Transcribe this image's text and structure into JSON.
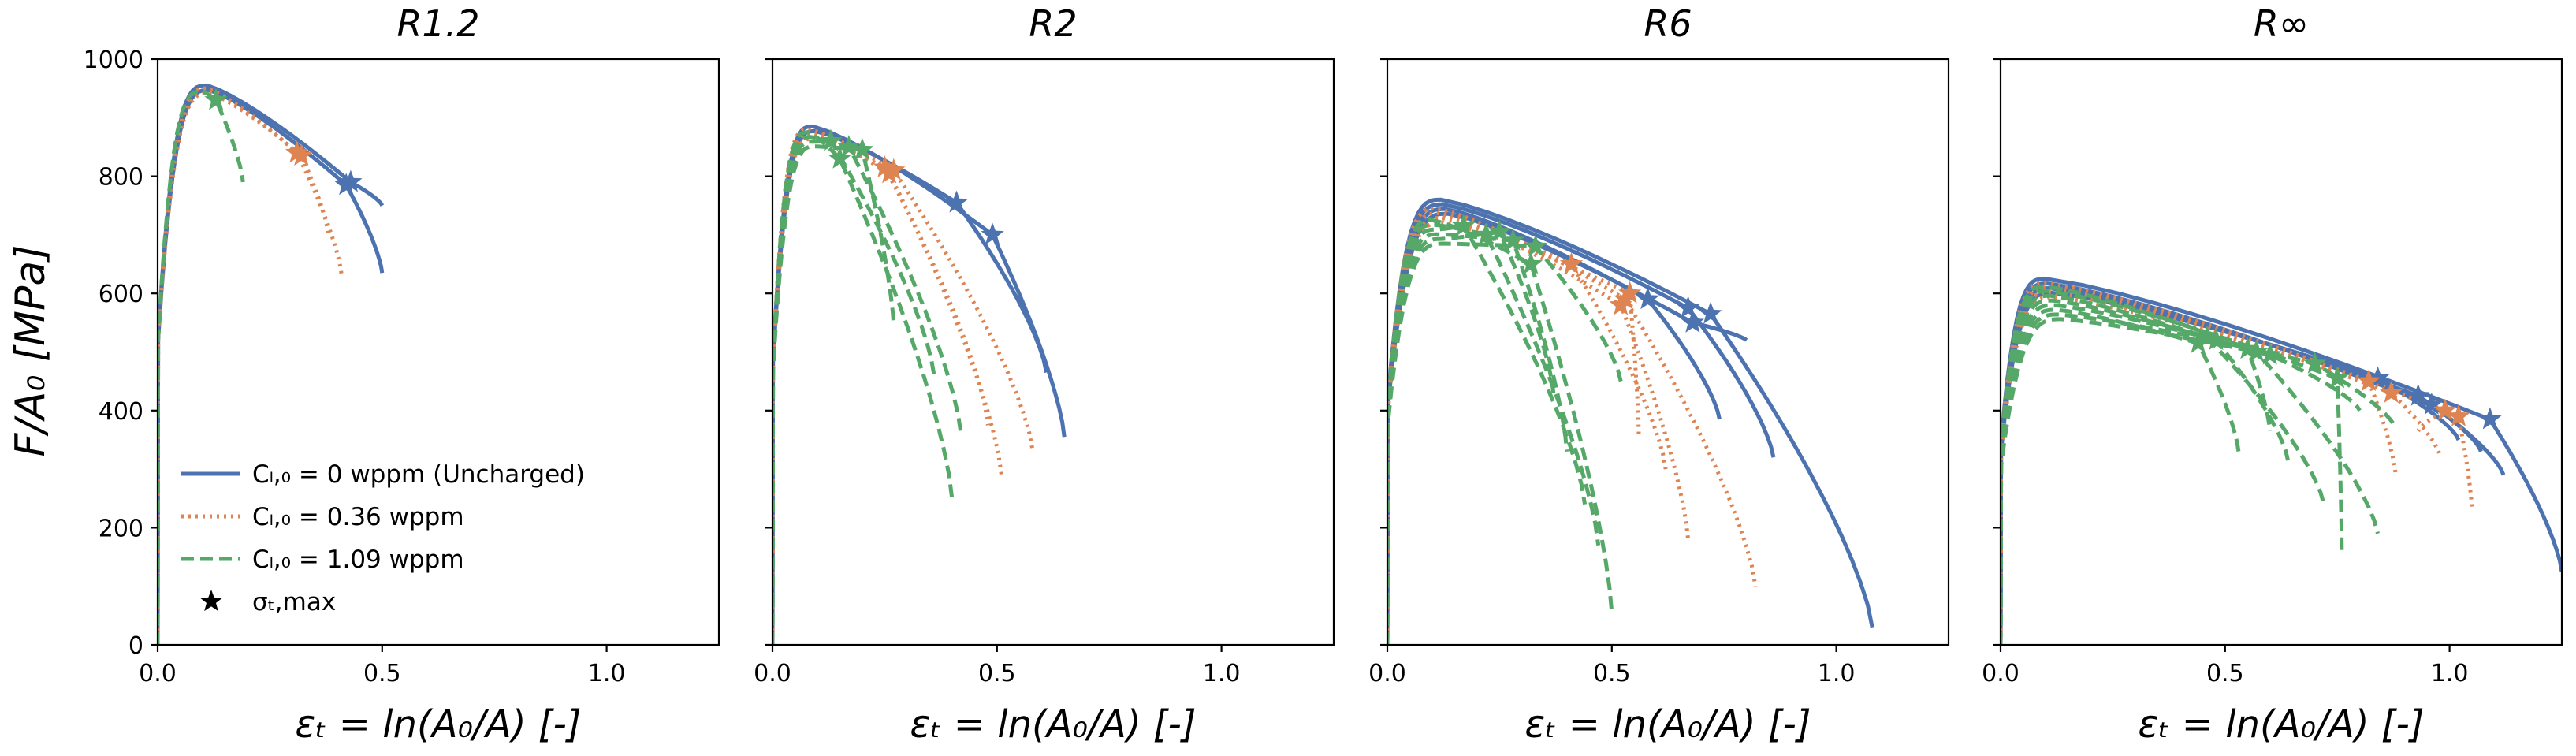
{
  "figure": {
    "ylabel": "F/A₀ [MPa]",
    "xlabel": "εₜ = ln(A₀/A) [-]"
  },
  "legend": {
    "entries": [
      {
        "label": "Cₗ,₀ = 0 wppm (Uncharged)",
        "style": "solid",
        "color": "#4c72b0"
      },
      {
        "label": "Cₗ,₀ = 0.36 wppm",
        "style": "dotted",
        "color": "#dd8452"
      },
      {
        "label": "Cₗ,₀ = 1.09 wppm",
        "style": "dashed",
        "color": "#55a868"
      },
      {
        "label": "σₜ,max",
        "style": "star",
        "color": "#000000"
      }
    ]
  },
  "chart_data": [
    {
      "type": "line",
      "title": "R1.2",
      "xlabel": "εₜ = ln(A₀/A) [-]",
      "ylabel": "F/A₀ [MPa]",
      "xlim": [
        0,
        1.25
      ],
      "ylim": [
        0,
        1000
      ],
      "xticks": [
        0.0,
        0.5,
        1.0
      ],
      "xtick_labels": [
        "0.0",
        "0.5",
        "1.0"
      ],
      "yticks": [
        0,
        200,
        400,
        600,
        800,
        1000
      ],
      "ytick_labels": [
        "0",
        "200",
        "400",
        "600",
        "800",
        "1000"
      ],
      "series": [
        {
          "name": "Cₗ,₀ = 0 wppm (Uncharged)",
          "color": "#4c72b0",
          "style": "solid",
          "ultimate": 955,
          "peak_x": 0.11,
          "curves": [
            {
              "end_x": 0.5,
              "end_y": 750,
              "star_x": 0.43,
              "star_y": 790
            },
            {
              "end_x": 0.5,
              "end_y": 635,
              "star_x": 0.42,
              "star_y": 785
            }
          ]
        },
        {
          "name": "Cₗ,₀ = 0.36 wppm",
          "color": "#dd8452",
          "style": "dotted",
          "ultimate": 950,
          "peak_x": 0.11,
          "curves": [
            {
              "end_x": 0.41,
              "end_y": 630,
              "star_x": 0.31,
              "star_y": 840
            },
            {
              "end_x": 0.38,
              "end_y": 700,
              "star_x": 0.32,
              "star_y": 835
            }
          ]
        },
        {
          "name": "Cₗ,₀ = 1.09 wppm",
          "color": "#55a868",
          "style": "dashed",
          "ultimate": 945,
          "peak_x": 0.1,
          "curves": [
            {
              "end_x": 0.19,
              "end_y": 790,
              "star_x": 0.13,
              "star_y": 930
            }
          ]
        }
      ]
    },
    {
      "type": "line",
      "title": "R2",
      "xlabel": "εₜ = ln(A₀/A) [-]",
      "ylabel": "",
      "xlim": [
        0,
        1.25
      ],
      "ylim": [
        0,
        1000
      ],
      "xticks": [
        0.0,
        0.5,
        1.0
      ],
      "xtick_labels": [
        "0.0",
        "0.5",
        "1.0"
      ],
      "yticks": [
        0,
        200,
        400,
        600,
        800,
        1000
      ],
      "ytick_labels": [
        "",
        "",
        "",
        "",
        "",
        ""
      ],
      "series": [
        {
          "name": "Cₗ,₀ = 0 wppm (Uncharged)",
          "color": "#4c72b0",
          "style": "solid",
          "ultimate": 885,
          "peak_x": 0.09,
          "curves": [
            {
              "end_x": 0.65,
              "end_y": 355,
              "star_x": 0.49,
              "star_y": 700
            },
            {
              "end_x": 0.61,
              "end_y": 465,
              "star_x": 0.41,
              "star_y": 755
            }
          ]
        },
        {
          "name": "Cₗ,₀ = 0.36 wppm",
          "color": "#dd8452",
          "style": "dotted",
          "ultimate": 880,
          "peak_x": 0.08,
          "curves": [
            {
              "end_x": 0.58,
              "end_y": 330,
              "star_x": 0.27,
              "star_y": 810
            },
            {
              "end_x": 0.51,
              "end_y": 290,
              "star_x": 0.26,
              "star_y": 805
            },
            {
              "end_x": 0.48,
              "end_y": 375,
              "star_x": 0.25,
              "star_y": 815
            }
          ]
        },
        {
          "name": "Cₗ,₀ = 1.09 wppm",
          "color": "#55a868",
          "style": "dashed",
          "ultimate": 875,
          "peak_x": 0.08,
          "curves": [
            {
              "end_x": 0.4,
              "end_y": 250,
              "star_x": 0.15,
              "star_y": 830
            },
            {
              "end_x": 0.42,
              "end_y": 360,
              "star_x": 0.17,
              "star_y": 850
            },
            {
              "end_x": 0.36,
              "end_y": 460,
              "star_x": 0.13,
              "star_y": 860
            },
            {
              "end_x": 0.27,
              "end_y": 545,
              "star_x": 0.2,
              "star_y": 845
            }
          ]
        }
      ]
    },
    {
      "type": "line",
      "title": "R6",
      "xlabel": "εₜ = ln(A₀/A) [-]",
      "ylabel": "",
      "xlim": [
        0,
        1.25
      ],
      "ylim": [
        0,
        1000
      ],
      "xticks": [
        0.0,
        0.5,
        1.0
      ],
      "xtick_labels": [
        "0.0",
        "0.5",
        "1.0"
      ],
      "yticks": [
        0,
        200,
        400,
        600,
        800,
        1000
      ],
      "ytick_labels": [
        "",
        "",
        "",
        "",
        "",
        ""
      ],
      "series": [
        {
          "name": "Cₗ,₀ = 0 wppm (Uncharged)",
          "color": "#4c72b0",
          "style": "solid",
          "ultimate": 760,
          "peak_x": 0.12,
          "curves": [
            {
              "end_x": 1.08,
              "end_y": 30,
              "star_x": 0.72,
              "star_y": 565
            },
            {
              "end_x": 0.86,
              "end_y": 320,
              "star_x": 0.67,
              "star_y": 575
            },
            {
              "end_x": 0.74,
              "end_y": 385,
              "star_x": 0.58,
              "star_y": 590
            },
            {
              "end_x": 0.8,
              "end_y": 520,
              "star_x": 0.68,
              "star_y": 550
            }
          ]
        },
        {
          "name": "Cₗ,₀ = 0.36 wppm",
          "color": "#dd8452",
          "style": "dotted",
          "ultimate": 745,
          "peak_x": 0.11,
          "curves": [
            {
              "end_x": 0.82,
              "end_y": 100,
              "star_x": 0.53,
              "star_y": 590
            },
            {
              "end_x": 0.67,
              "end_y": 180,
              "star_x": 0.52,
              "star_y": 580
            },
            {
              "end_x": 0.62,
              "end_y": 300,
              "star_x": 0.41,
              "star_y": 650
            },
            {
              "end_x": 0.56,
              "end_y": 360,
              "star_x": 0.54,
              "star_y": 600
            }
          ]
        },
        {
          "name": "Cₗ,₀ = 1.09 wppm",
          "color": "#55a868",
          "style": "dashed",
          "ultimate": 725,
          "peak_x": 0.1,
          "curves": [
            {
              "end_x": 0.5,
              "end_y": 55,
              "star_x": 0.32,
              "star_y": 650
            },
            {
              "end_x": 0.47,
              "end_y": 170,
              "star_x": 0.22,
              "star_y": 700
            },
            {
              "end_x": 0.44,
              "end_y": 240,
              "star_x": 0.17,
              "star_y": 715
            },
            {
              "end_x": 0.4,
              "end_y": 330,
              "star_x": 0.28,
              "star_y": 690
            },
            {
              "end_x": 0.37,
              "end_y": 430,
              "star_x": 0.25,
              "star_y": 705
            },
            {
              "end_x": 0.52,
              "end_y": 450,
              "star_x": 0.33,
              "star_y": 680
            }
          ]
        }
      ]
    },
    {
      "type": "line",
      "title": "R∞",
      "xlabel": "εₜ = ln(A₀/A) [-]",
      "ylabel": "",
      "xlim": [
        0,
        1.25
      ],
      "ylim": [
        0,
        1000
      ],
      "xticks": [
        0.0,
        0.5,
        1.0
      ],
      "xtick_labels": [
        "0.0",
        "0.5",
        "1.0"
      ],
      "yticks": [
        0,
        200,
        400,
        600,
        800,
        1000
      ],
      "ytick_labels": [
        "",
        "",
        "",
        "",
        "",
        ""
      ],
      "series": [
        {
          "name": "Cₗ,₀ = 0 wppm (Uncharged)",
          "color": "#4c72b0",
          "style": "solid",
          "ultimate": 625,
          "peak_x": 0.1,
          "curves": [
            {
              "end_x": 1.25,
              "end_y": 125,
              "star_x": 1.09,
              "star_y": 385
            },
            {
              "end_x": 1.12,
              "end_y": 290,
              "star_x": 0.96,
              "star_y": 410
            },
            {
              "end_x": 1.07,
              "end_y": 330,
              "star_x": 0.93,
              "star_y": 425
            },
            {
              "end_x": 1.02,
              "end_y": 350,
              "star_x": 0.84,
              "star_y": 455
            }
          ]
        },
        {
          "name": "Cₗ,₀ = 0.36 wppm",
          "color": "#dd8452",
          "style": "dotted",
          "ultimate": 618,
          "peak_x": 0.1,
          "curves": [
            {
              "end_x": 1.05,
              "end_y": 230,
              "star_x": 1.02,
              "star_y": 390
            },
            {
              "end_x": 0.98,
              "end_y": 320,
              "star_x": 0.87,
              "star_y": 430
            },
            {
              "end_x": 0.93,
              "end_y": 365,
              "star_x": 0.99,
              "star_y": 400
            },
            {
              "end_x": 0.88,
              "end_y": 290,
              "star_x": 0.82,
              "star_y": 450
            }
          ]
        },
        {
          "name": "Cₗ,₀ = 1.09 wppm",
          "color": "#55a868",
          "style": "dashed",
          "ultimate": 612,
          "peak_x": 0.1,
          "curves": [
            {
              "end_x": 0.84,
              "end_y": 190,
              "star_x": 0.57,
              "star_y": 500
            },
            {
              "end_x": 0.76,
              "end_y": 155,
              "star_x": 0.75,
              "star_y": 455
            },
            {
              "end_x": 0.72,
              "end_y": 240,
              "star_x": 0.46,
              "star_y": 525
            },
            {
              "end_x": 0.64,
              "end_y": 315,
              "star_x": 0.48,
              "star_y": 520
            },
            {
              "end_x": 0.6,
              "end_y": 365,
              "star_x": 0.55,
              "star_y": 505
            },
            {
              "end_x": 0.53,
              "end_y": 330,
              "star_x": 0.44,
              "star_y": 515
            },
            {
              "end_x": 0.88,
              "end_y": 370,
              "star_x": 0.7,
              "star_y": 480
            },
            {
              "end_x": 0.8,
              "end_y": 400,
              "star_x": 0.6,
              "star_y": 495
            }
          ]
        }
      ]
    }
  ]
}
